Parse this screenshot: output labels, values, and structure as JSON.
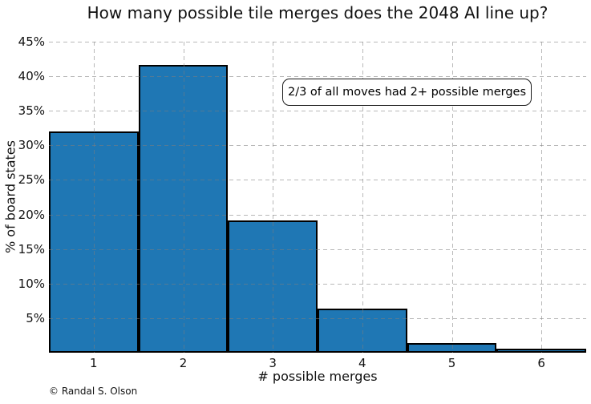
{
  "chart_data": {
    "type": "bar",
    "title": "How many possible tile merges does the 2048 AI line up?",
    "xlabel": "# possible merges",
    "ylabel": "% of board states",
    "categories": [
      "1",
      "2",
      "3",
      "4",
      "5",
      "6"
    ],
    "values": [
      31.8,
      41.4,
      18.9,
      6.2,
      1.2,
      0.3
    ],
    "value_unit": "%",
    "ylim": [
      0,
      45
    ],
    "ytick_step": 5,
    "ytick_labels": [
      "5%",
      "10%",
      "15%",
      "20%",
      "25%",
      "30%",
      "35%",
      "40%",
      "45%"
    ],
    "grid": "dashed, horizontal and vertical, drawn over bars",
    "legend_position": "none",
    "bar_fill_color": "#1f77b4",
    "bar_edge_color": "#000000",
    "annotation": "2/3 of all moves had 2+ possible merges",
    "copyright": "© Randal S. Olson"
  }
}
